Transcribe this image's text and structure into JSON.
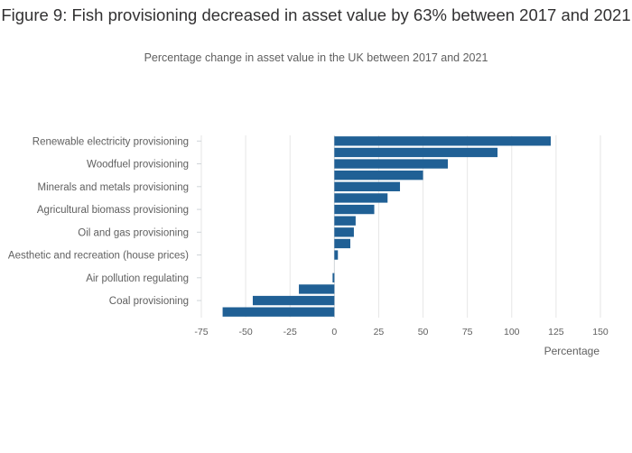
{
  "chart_data": {
    "type": "bar",
    "orientation": "horizontal",
    "title": "Figure 9: Fish provisioning decreased in asset value by 63% between 2017 and 2021",
    "subtitle": "Percentage change in asset value in the UK between 2017 and 2021",
    "xlabel": "Percentage",
    "xlim": [
      -75,
      150
    ],
    "xticks": [
      -75,
      -50,
      -25,
      0,
      25,
      50,
      75,
      100,
      125,
      150
    ],
    "xtick_labels": [
      "-75",
      "-50",
      "-25",
      "0",
      "25",
      "50",
      "75",
      "100",
      "125",
      "150"
    ],
    "tick_labels_shown": [
      "Renewable electricity provisioning",
      "Woodfuel provisioning",
      "Minerals and metals provisioning",
      "Agricultural biomass provisioning",
      "Oil and gas provisioning",
      "Aesthetic and recreation (house prices)",
      "Air pollution regulating",
      "Coal provisioning"
    ],
    "bars": [
      {
        "label": "Renewable electricity provisioning",
        "value": 122
      },
      {
        "label": "",
        "value": 92
      },
      {
        "label": "Woodfuel provisioning",
        "value": 64
      },
      {
        "label": "",
        "value": 50
      },
      {
        "label": "Minerals and metals provisioning",
        "value": 37
      },
      {
        "label": "",
        "value": 30
      },
      {
        "label": "Agricultural biomass provisioning",
        "value": 22.5
      },
      {
        "label": "",
        "value": 12
      },
      {
        "label": "Oil and gas provisioning",
        "value": 11
      },
      {
        "label": "",
        "value": 9
      },
      {
        "label": "Aesthetic and recreation (house prices)",
        "value": 2
      },
      {
        "label": "",
        "value": 0
      },
      {
        "label": "Air pollution regulating",
        "value": -1
      },
      {
        "label": "",
        "value": -20
      },
      {
        "label": "Coal provisioning",
        "value": -46
      },
      {
        "label": "",
        "value": -63
      }
    ],
    "bar_color": "#206095",
    "grid": true
  }
}
